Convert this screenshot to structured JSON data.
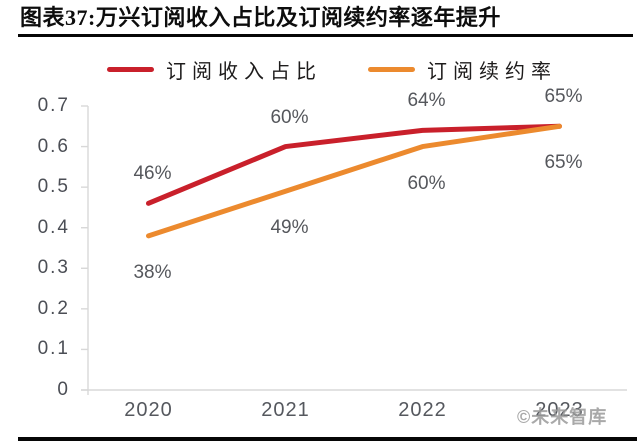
{
  "header": {
    "title": "图表37:万兴订阅收入占比及订阅续约率逐年提升"
  },
  "watermark": "©未来智库",
  "chart_data": {
    "type": "line",
    "title": "图表37:万兴订阅收入占比及订阅续约率逐年提升",
    "categories": [
      "2020",
      "2021",
      "2022",
      "2023"
    ],
    "series": [
      {
        "name": "订阅收入占比",
        "color": "#c9202b",
        "values": [
          0.46,
          0.6,
          0.64,
          0.65
        ],
        "point_labels": [
          "46%",
          "60%",
          "64%",
          "65%"
        ],
        "label_position": "above"
      },
      {
        "name": "订阅续约率",
        "color": "#ec8a2e",
        "values": [
          0.38,
          0.49,
          0.6,
          0.65
        ],
        "point_labels": [
          "38%",
          "49%",
          "60%",
          "65%"
        ],
        "label_position": "below"
      }
    ],
    "ylim": [
      0,
      0.7
    ],
    "ytick_step": 0.1,
    "ytick_labels": [
      "0",
      "0.1",
      "0.2",
      "0.3",
      "0.4",
      "0.5",
      "0.6",
      "0.7"
    ],
    "grid": false,
    "legend_position": "top",
    "axis_color": "#d8d8d8",
    "tick_label_color": "#54565b"
  }
}
